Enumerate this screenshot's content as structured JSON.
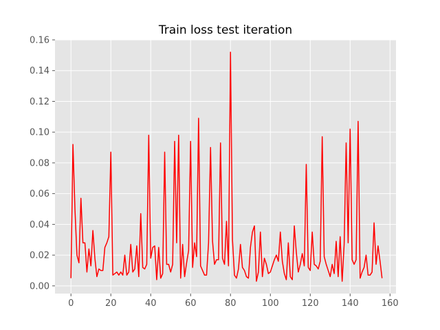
{
  "chart_data": {
    "type": "line",
    "title": "Train loss test iteration",
    "xlabel": "",
    "ylabel": "",
    "xlim": [
      -8,
      163
    ],
    "ylim": [
      -0.005,
      0.16
    ],
    "x_ticks": [
      0,
      20,
      40,
      60,
      80,
      100,
      120,
      140,
      160
    ],
    "y_ticks": [
      0.0,
      0.02,
      0.04,
      0.06,
      0.08,
      0.1,
      0.12,
      0.14,
      0.16
    ],
    "y_tick_labels": [
      "0.00",
      "0.02",
      "0.04",
      "0.06",
      "0.08",
      "0.10",
      "0.12",
      "0.14",
      "0.16"
    ],
    "grid": true,
    "legend": false,
    "colors": {
      "line": "#ff0000",
      "plot_background": "#e5e5e5",
      "grid": "#ffffff",
      "tick_text": "#555555",
      "title_text": "#000000"
    },
    "series": [
      {
        "x": [
          0,
          1,
          2,
          3,
          4,
          5,
          6,
          7,
          8,
          9,
          10,
          11,
          12,
          13,
          14,
          15,
          16,
          17,
          18,
          19,
          20,
          21,
          22,
          23,
          24,
          25,
          26,
          27,
          28,
          29,
          30,
          31,
          32,
          33,
          34,
          35,
          36,
          37,
          38,
          39,
          40,
          41,
          42,
          43,
          44,
          45,
          46,
          47,
          48,
          49,
          50,
          51,
          52,
          53,
          54,
          55,
          56,
          57,
          58,
          59,
          60,
          61,
          62,
          63,
          64,
          65,
          66,
          67,
          68,
          69,
          70,
          71,
          72,
          73,
          74,
          75,
          76,
          77,
          78,
          79,
          80,
          81,
          82,
          83,
          84,
          85,
          86,
          87,
          88,
          89,
          90,
          91,
          92,
          93,
          94,
          95,
          96,
          97,
          98,
          99,
          100,
          101,
          102,
          103,
          104,
          105,
          106,
          107,
          108,
          109,
          110,
          111,
          112,
          113,
          114,
          115,
          116,
          117,
          118,
          119,
          120,
          121,
          122,
          123,
          124,
          125,
          126,
          127,
          128,
          129,
          130,
          131,
          132,
          133,
          134,
          135,
          136,
          137,
          138,
          139,
          140,
          141,
          142,
          143,
          144,
          145,
          146,
          147,
          148,
          149,
          150,
          151,
          152,
          153,
          154,
          155,
          156
        ],
        "y": [
          0.005,
          0.092,
          0.05,
          0.02,
          0.015,
          0.057,
          0.028,
          0.028,
          0.009,
          0.024,
          0.013,
          0.036,
          0.018,
          0.006,
          0.011,
          0.01,
          0.01,
          0.025,
          0.028,
          0.032,
          0.087,
          0.007,
          0.008,
          0.009,
          0.007,
          0.009,
          0.007,
          0.02,
          0.007,
          0.009,
          0.027,
          0.009,
          0.011,
          0.026,
          0.006,
          0.047,
          0.012,
          0.011,
          0.014,
          0.098,
          0.018,
          0.025,
          0.026,
          0.004,
          0.025,
          0.005,
          0.008,
          0.087,
          0.014,
          0.014,
          0.009,
          0.014,
          0.094,
          0.028,
          0.098,
          0.005,
          0.027,
          0.006,
          0.015,
          0.023,
          0.094,
          0.012,
          0.028,
          0.019,
          0.109,
          0.013,
          0.01,
          0.007,
          0.007,
          0.028,
          0.09,
          0.029,
          0.014,
          0.017,
          0.017,
          0.093,
          0.018,
          0.014,
          0.042,
          0.013,
          0.152,
          0.03,
          0.007,
          0.005,
          0.011,
          0.027,
          0.012,
          0.01,
          0.006,
          0.005,
          0.025,
          0.035,
          0.039,
          0.003,
          0.009,
          0.035,
          0.006,
          0.018,
          0.014,
          0.008,
          0.009,
          0.013,
          0.017,
          0.02,
          0.016,
          0.035,
          0.016,
          0.008,
          0.004,
          0.028,
          0.006,
          0.004,
          0.039,
          0.022,
          0.009,
          0.014,
          0.021,
          0.013,
          0.079,
          0.012,
          0.01,
          0.035,
          0.014,
          0.013,
          0.011,
          0.016,
          0.097,
          0.019,
          0.014,
          0.01,
          0.006,
          0.014,
          0.008,
          0.029,
          0.006,
          0.032,
          0.003,
          0.027,
          0.093,
          0.028,
          0.102,
          0.017,
          0.014,
          0.017,
          0.107,
          0.005,
          0.009,
          0.012,
          0.02,
          0.007,
          0.007,
          0.009,
          0.041,
          0.014,
          0.026,
          0.016,
          0.005
        ]
      }
    ]
  }
}
